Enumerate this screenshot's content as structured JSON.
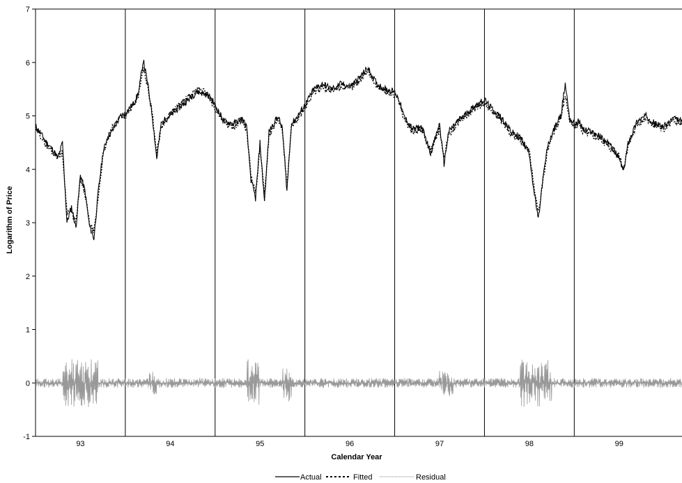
{
  "chart_data": {
    "type": "line",
    "xlabel": "Calendar Year",
    "ylabel": "Logarithm of Price",
    "ylim": [
      -1,
      7
    ],
    "yticks": [
      -1,
      0,
      1,
      2,
      3,
      4,
      5,
      6,
      7
    ],
    "xlim": [
      1992.5,
      1999.7
    ],
    "year_labels": [
      "93",
      "94",
      "95",
      "96",
      "97",
      "98",
      "99"
    ],
    "year_label_positions": [
      1993.0,
      1994.0,
      1995.0,
      1996.0,
      1997.0,
      1998.0,
      1999.0
    ],
    "year_dividers": [
      1993.5,
      1994.5,
      1995.5,
      1996.5,
      1997.5,
      1998.5
    ],
    "grid": false,
    "legend_position": "bottom-center",
    "series": [
      {
        "name": "Actual",
        "style": "solid",
        "color": "#000000",
        "x": [
          1992.5,
          1992.55,
          1992.6,
          1992.65,
          1992.7,
          1992.75,
          1992.8,
          1992.85,
          1992.9,
          1992.95,
          1993.0,
          1993.05,
          1993.1,
          1993.15,
          1993.2,
          1993.25,
          1993.3,
          1993.35,
          1993.4,
          1993.45,
          1993.5,
          1993.55,
          1993.6,
          1993.65,
          1993.7,
          1993.75,
          1993.8,
          1993.85,
          1993.9,
          1993.95,
          1994.0,
          1994.1,
          1994.2,
          1994.3,
          1994.4,
          1994.45,
          1994.5,
          1994.55,
          1994.6,
          1994.7,
          1994.8,
          1994.85,
          1994.9,
          1994.95,
          1995.0,
          1995.05,
          1995.1,
          1995.15,
          1995.2,
          1995.25,
          1995.3,
          1995.35,
          1995.4,
          1995.5,
          1995.6,
          1995.7,
          1995.8,
          1995.9,
          1996.0,
          1996.1,
          1996.2,
          1996.25,
          1996.3,
          1996.4,
          1996.5,
          1996.55,
          1996.6,
          1996.7,
          1996.8,
          1996.9,
          1997.0,
          1997.05,
          1997.1,
          1997.2,
          1997.3,
          1997.4,
          1997.5,
          1997.6,
          1997.7,
          1997.8,
          1997.9,
          1998.0,
          1998.05,
          1998.1,
          1998.15,
          1998.2,
          1998.25,
          1998.3,
          1998.35,
          1998.4,
          1998.45,
          1998.5,
          1998.55,
          1998.6,
          1998.7,
          1998.8,
          1998.9,
          1999.0,
          1999.05,
          1999.1,
          1999.2,
          1999.3,
          1999.4,
          1999.5,
          1999.6,
          1999.7
        ],
        "y": [
          4.8,
          4.7,
          4.55,
          4.45,
          4.35,
          4.2,
          4.5,
          3.0,
          3.3,
          2.9,
          3.9,
          3.6,
          2.95,
          2.7,
          3.6,
          4.3,
          4.6,
          4.7,
          4.85,
          5.0,
          5.05,
          5.15,
          5.25,
          5.45,
          6.05,
          5.6,
          5.0,
          4.2,
          4.85,
          4.95,
          5.0,
          5.15,
          5.3,
          5.45,
          5.4,
          5.35,
          5.2,
          5.05,
          4.9,
          4.85,
          4.95,
          4.8,
          3.8,
          3.45,
          4.5,
          3.4,
          4.7,
          4.85,
          5.0,
          4.75,
          3.6,
          4.85,
          4.95,
          5.2,
          5.5,
          5.6,
          5.5,
          5.6,
          5.55,
          5.7,
          5.9,
          5.75,
          5.6,
          5.5,
          5.45,
          5.3,
          5.0,
          4.75,
          4.8,
          4.3,
          4.85,
          4.1,
          4.7,
          4.9,
          5.05,
          5.2,
          5.3,
          5.1,
          4.95,
          4.7,
          4.6,
          4.3,
          3.6,
          3.05,
          3.8,
          4.4,
          4.65,
          4.85,
          5.0,
          5.6,
          4.95,
          4.85,
          4.9,
          4.75,
          4.7,
          4.6,
          4.45,
          4.2,
          3.95,
          4.5,
          4.9,
          5.0,
          4.85,
          4.8,
          4.95,
          4.9
        ]
      },
      {
        "name": "Fitted",
        "style": "dotted",
        "color": "#000000",
        "x": [
          1992.5,
          1992.55,
          1992.6,
          1992.65,
          1992.7,
          1992.75,
          1992.8,
          1992.85,
          1992.9,
          1992.95,
          1993.0,
          1993.05,
          1993.1,
          1993.15,
          1993.2,
          1993.25,
          1993.3,
          1993.35,
          1993.4,
          1993.45,
          1993.5,
          1993.55,
          1993.6,
          1993.65,
          1993.7,
          1993.75,
          1993.8,
          1993.85,
          1993.9,
          1993.95,
          1994.0,
          1994.1,
          1994.2,
          1994.3,
          1994.4,
          1994.45,
          1994.5,
          1994.55,
          1994.6,
          1994.7,
          1994.8,
          1994.85,
          1994.9,
          1994.95,
          1995.0,
          1995.05,
          1995.1,
          1995.15,
          1995.2,
          1995.25,
          1995.3,
          1995.35,
          1995.4,
          1995.5,
          1995.6,
          1995.7,
          1995.8,
          1995.9,
          1996.0,
          1996.1,
          1996.2,
          1996.25,
          1996.3,
          1996.4,
          1996.5,
          1996.55,
          1996.6,
          1996.7,
          1996.8,
          1996.9,
          1997.0,
          1997.05,
          1997.1,
          1997.2,
          1997.3,
          1997.4,
          1997.5,
          1997.6,
          1997.7,
          1997.8,
          1997.9,
          1998.0,
          1998.05,
          1998.1,
          1998.15,
          1998.2,
          1998.25,
          1998.3,
          1998.35,
          1998.4,
          1998.45,
          1998.5,
          1998.55,
          1998.6,
          1998.7,
          1998.8,
          1998.9,
          1999.0,
          1999.05,
          1999.1,
          1999.2,
          1999.3,
          1999.4,
          1999.5,
          1999.6,
          1999.7
        ],
        "y": [
          4.75,
          4.65,
          4.5,
          4.4,
          4.3,
          4.25,
          4.3,
          3.2,
          3.2,
          3.0,
          3.8,
          3.55,
          3.0,
          2.8,
          3.5,
          4.25,
          4.55,
          4.75,
          4.9,
          5.0,
          5.0,
          5.1,
          5.2,
          5.4,
          5.9,
          5.55,
          5.05,
          4.3,
          4.8,
          4.9,
          5.05,
          5.2,
          5.35,
          5.5,
          5.45,
          5.3,
          5.15,
          5.0,
          4.85,
          4.8,
          4.9,
          4.75,
          3.9,
          3.55,
          4.4,
          3.5,
          4.6,
          4.8,
          4.95,
          4.7,
          3.7,
          4.8,
          4.9,
          5.15,
          5.45,
          5.55,
          5.45,
          5.55,
          5.5,
          5.65,
          5.85,
          5.7,
          5.55,
          5.45,
          5.4,
          5.25,
          4.95,
          4.7,
          4.75,
          4.35,
          4.75,
          4.2,
          4.65,
          4.85,
          5.0,
          5.15,
          5.25,
          5.05,
          4.9,
          4.65,
          4.55,
          4.35,
          3.7,
          3.2,
          3.75,
          4.35,
          4.6,
          4.8,
          4.95,
          5.4,
          4.9,
          4.8,
          4.85,
          4.7,
          4.65,
          4.55,
          4.4,
          4.25,
          4.0,
          4.45,
          4.85,
          4.95,
          4.8,
          4.75,
          4.9,
          4.85
        ]
      },
      {
        "name": "Residual",
        "style": "fine-dotted",
        "color": "#999999"
      }
    ]
  },
  "legend": {
    "items": [
      "Actual",
      "Fitted",
      "Residual"
    ]
  }
}
